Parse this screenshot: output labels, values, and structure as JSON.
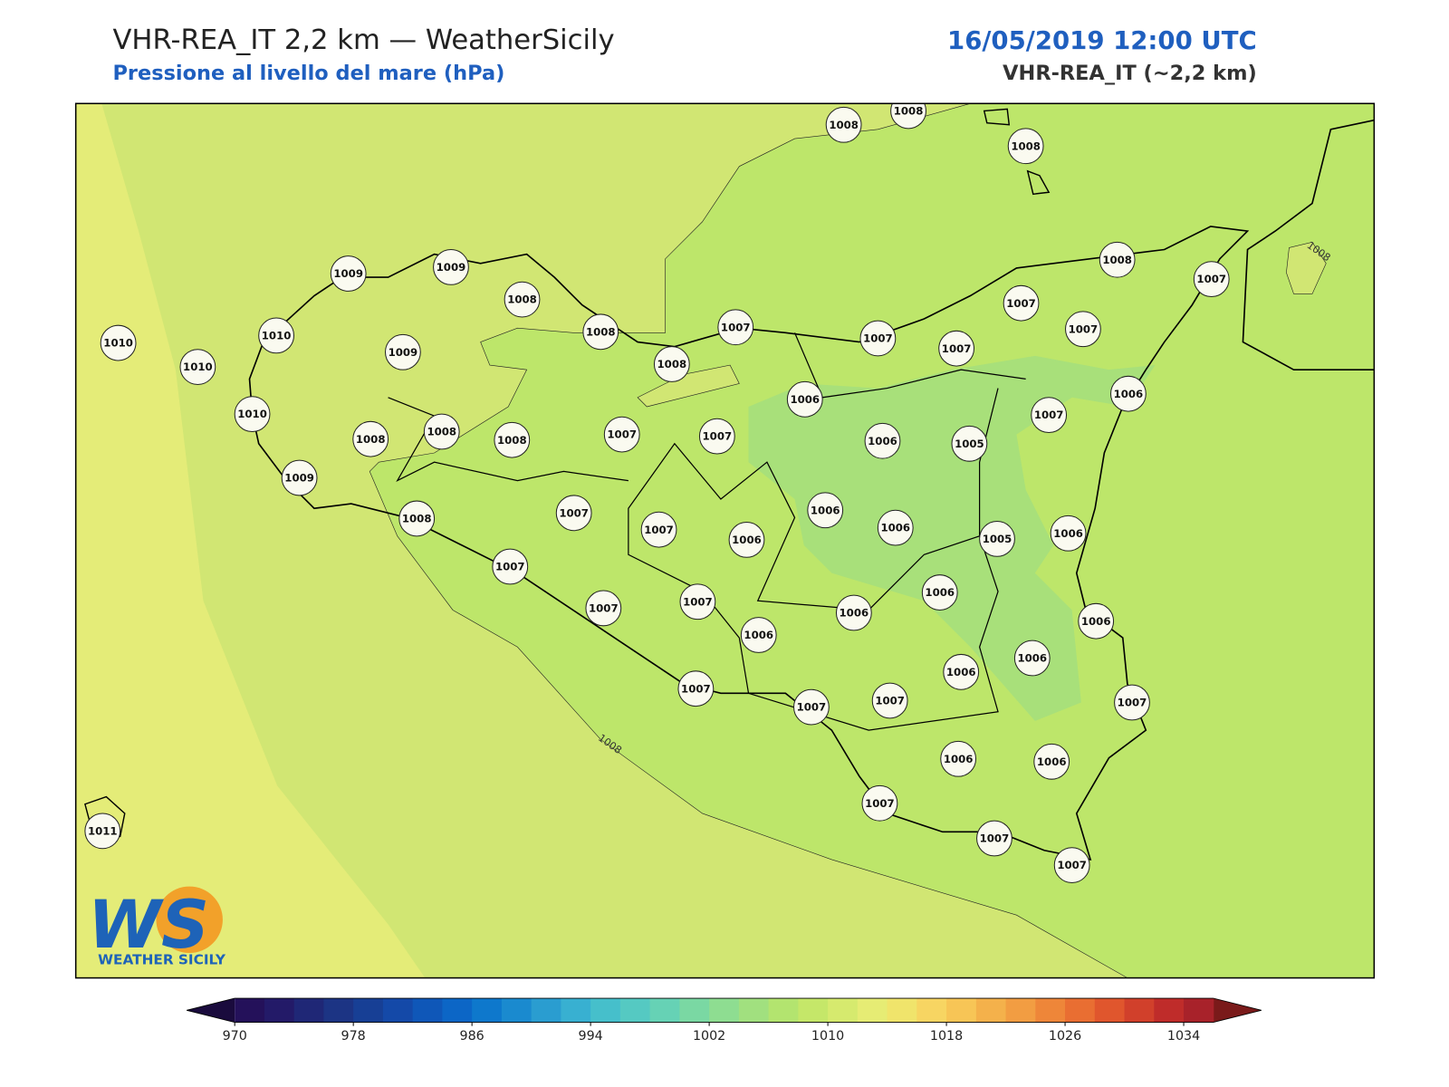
{
  "header": {
    "title": "VHR-REA_IT 2,2 km — WeatherSicily",
    "subtitle": "Pressione al livello del mare (hPa)",
    "datetime": "16/05/2019 12:00 UTC",
    "model": "VHR-REA_IT (~2,2 km)"
  },
  "map": {
    "stations": [
      1008,
      1008,
      1008,
      1009,
      1009,
      1008,
      1008,
      1010,
      1010,
      1010,
      1009,
      1010,
      1008,
      1008,
      1008,
      1007,
      1007,
      1008,
      1007,
      1007,
      1007,
      1007,
      1007,
      1008,
      1007,
      1006,
      1006,
      1005,
      1007,
      1006,
      1009,
      1008,
      1007,
      1007,
      1006,
      1006,
      1006,
      1005,
      1006,
      1007,
      1007,
      1007,
      1006,
      1006,
      1006,
      1006,
      1006,
      1006,
      1007,
      1007,
      1007,
      1007,
      1006,
      1006,
      1007,
      1007,
      1007,
      1011
    ],
    "contour_labels": [
      1008,
      1008
    ]
  },
  "logo": {
    "mark": "WS",
    "name": "WEATHER SICILY"
  },
  "colorbar": {
    "range": [
      970,
      1036
    ],
    "ticks": [
      970,
      978,
      986,
      994,
      1002,
      1010,
      1018,
      1026,
      1034
    ],
    "under": "#1a0b3d",
    "over": "#7a1a1a",
    "colors": [
      "#24115a",
      "#231a68",
      "#1f2776",
      "#1c3484",
      "#173f95",
      "#1449a8",
      "#0f57b8",
      "#0c66c6",
      "#0e78cc",
      "#1a8acf",
      "#2a9dd0",
      "#38b0d1",
      "#46bfcb",
      "#55c9c2",
      "#66d2b5",
      "#7ad8a3",
      "#8edd91",
      "#a1e07f",
      "#b3e46f",
      "#c5e769",
      "#d6ea6e",
      "#e6ec74",
      "#f0e46b",
      "#f7d562",
      "#f7c556",
      "#f4b14b",
      "#f29d42",
      "#ee8639",
      "#e96e32",
      "#e0562d",
      "#d1402b",
      "#bf2c2a",
      "#a8222a"
    ]
  }
}
